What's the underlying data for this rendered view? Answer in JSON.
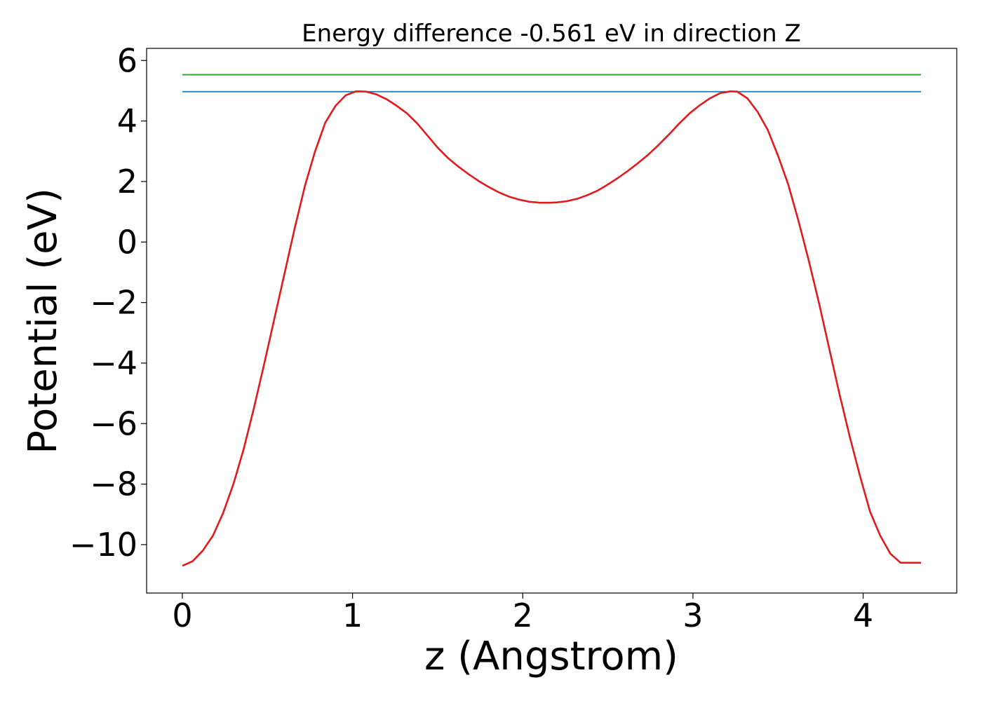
{
  "chart_data": {
    "type": "line",
    "title": "Energy difference -0.561 eV in direction Z",
    "xlabel": "z (Angstrom)",
    "ylabel": "Potential (eV)",
    "xlim": [
      -0.21,
      4.55
    ],
    "ylim": [
      -11.6,
      6.4
    ],
    "xticks": [
      0,
      1,
      2,
      3,
      4
    ],
    "yticks": [
      -10,
      -8,
      -6,
      -4,
      -2,
      0,
      2,
      4,
      6
    ],
    "xtick_labels": [
      "0",
      "1",
      "2",
      "3",
      "4"
    ],
    "ytick_labels": [
      "−10",
      "−8",
      "−6",
      "−4",
      "−2",
      "0",
      "2",
      "4",
      "6"
    ],
    "grid": false,
    "legend": false,
    "series": [
      {
        "color": "#2ca02c",
        "x": [
          0,
          4.34
        ],
        "y": [
          5.53,
          5.53
        ]
      },
      {
        "color": "#1f77b4",
        "x": [
          0,
          4.34
        ],
        "y": [
          4.97,
          4.97
        ]
      },
      {
        "color": "#e31a1c",
        "x": [
          0.0,
          0.06,
          0.12,
          0.18,
          0.24,
          0.3,
          0.36,
          0.42,
          0.48,
          0.54,
          0.6,
          0.66,
          0.72,
          0.78,
          0.84,
          0.9,
          0.96,
          1.02,
          1.08,
          1.14,
          1.2,
          1.26,
          1.32,
          1.38,
          1.44,
          1.5,
          1.56,
          1.62,
          1.68,
          1.74,
          1.8,
          1.86,
          1.92,
          1.98,
          2.04,
          2.1,
          2.16,
          2.2,
          2.26,
          2.32,
          2.38,
          2.44,
          2.5,
          2.56,
          2.62,
          2.68,
          2.74,
          2.8,
          2.86,
          2.92,
          2.98,
          3.04,
          3.1,
          3.16,
          3.22,
          3.26,
          3.32,
          3.38,
          3.44,
          3.5,
          3.56,
          3.62,
          3.68,
          3.74,
          3.8,
          3.86,
          3.92,
          3.98,
          4.04,
          4.1,
          4.16,
          4.22,
          4.28,
          4.34
        ],
        "y": [
          -10.7,
          -10.55,
          -10.2,
          -9.7,
          -8.95,
          -8.0,
          -6.85,
          -5.5,
          -4.05,
          -2.55,
          -1.05,
          0.45,
          1.85,
          3.0,
          3.95,
          4.5,
          4.85,
          4.98,
          4.97,
          4.88,
          4.72,
          4.5,
          4.25,
          3.92,
          3.52,
          3.12,
          2.78,
          2.5,
          2.25,
          2.02,
          1.82,
          1.64,
          1.5,
          1.4,
          1.33,
          1.3,
          1.3,
          1.31,
          1.35,
          1.43,
          1.55,
          1.7,
          1.9,
          2.12,
          2.36,
          2.62,
          2.9,
          3.22,
          3.56,
          3.92,
          4.25,
          4.52,
          4.75,
          4.92,
          4.98,
          4.97,
          4.75,
          4.3,
          3.7,
          2.85,
          1.9,
          0.7,
          -0.6,
          -2.0,
          -3.5,
          -5.0,
          -6.4,
          -7.7,
          -8.9,
          -9.7,
          -10.3,
          -10.6,
          -10.6,
          -10.6
        ]
      }
    ]
  }
}
